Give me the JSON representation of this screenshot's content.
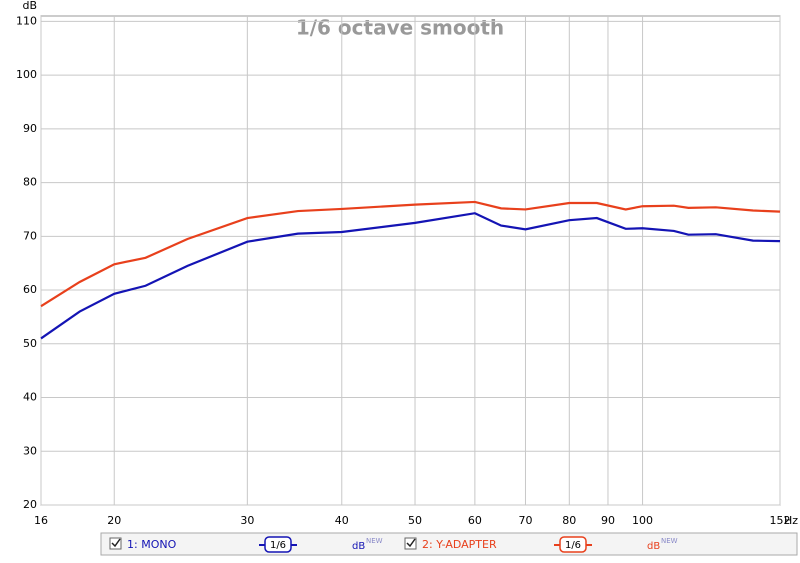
{
  "chart_data": {
    "type": "line",
    "title": "1/6 octave smooth",
    "y_unit": "dB",
    "x_unit": "Hz",
    "log_x": true,
    "grid": true,
    "x": [
      16,
      18,
      20,
      22,
      25,
      30,
      35,
      40,
      50,
      60,
      65,
      70,
      80,
      87,
      95,
      100,
      110,
      115,
      125,
      140,
      152
    ],
    "series": [
      {
        "name": "1: MONO",
        "color": "#1414b4",
        "smoothing": "1/6",
        "unit": "dB",
        "unit_tag": "NEW",
        "values": [
          51,
          56,
          59.3,
          60.8,
          64.5,
          69,
          70.5,
          70.8,
          72.5,
          74.3,
          72,
          71.3,
          73,
          73.4,
          71.4,
          71.5,
          71,
          70.3,
          70.4,
          69.2,
          69.1
        ]
      },
      {
        "name": "2: Y-ADAPTER",
        "color": "#e8401c",
        "smoothing": "1/6",
        "unit": "dB",
        "unit_tag": "NEW",
        "values": [
          57,
          61.5,
          64.8,
          66,
          69.5,
          73.4,
          74.7,
          75.1,
          75.9,
          76.4,
          75.2,
          75,
          76.2,
          76.2,
          75,
          75.6,
          75.7,
          75.3,
          75.4,
          74.8,
          74.6
        ]
      }
    ],
    "xlim": [
      16,
      152
    ],
    "xticks": [
      16,
      20,
      30,
      40,
      50,
      60,
      70,
      80,
      90,
      100,
      152
    ],
    "ylim": [
      20,
      111
    ],
    "yticks": [
      20,
      30,
      40,
      50,
      60,
      70,
      80,
      90,
      100,
      110
    ]
  }
}
